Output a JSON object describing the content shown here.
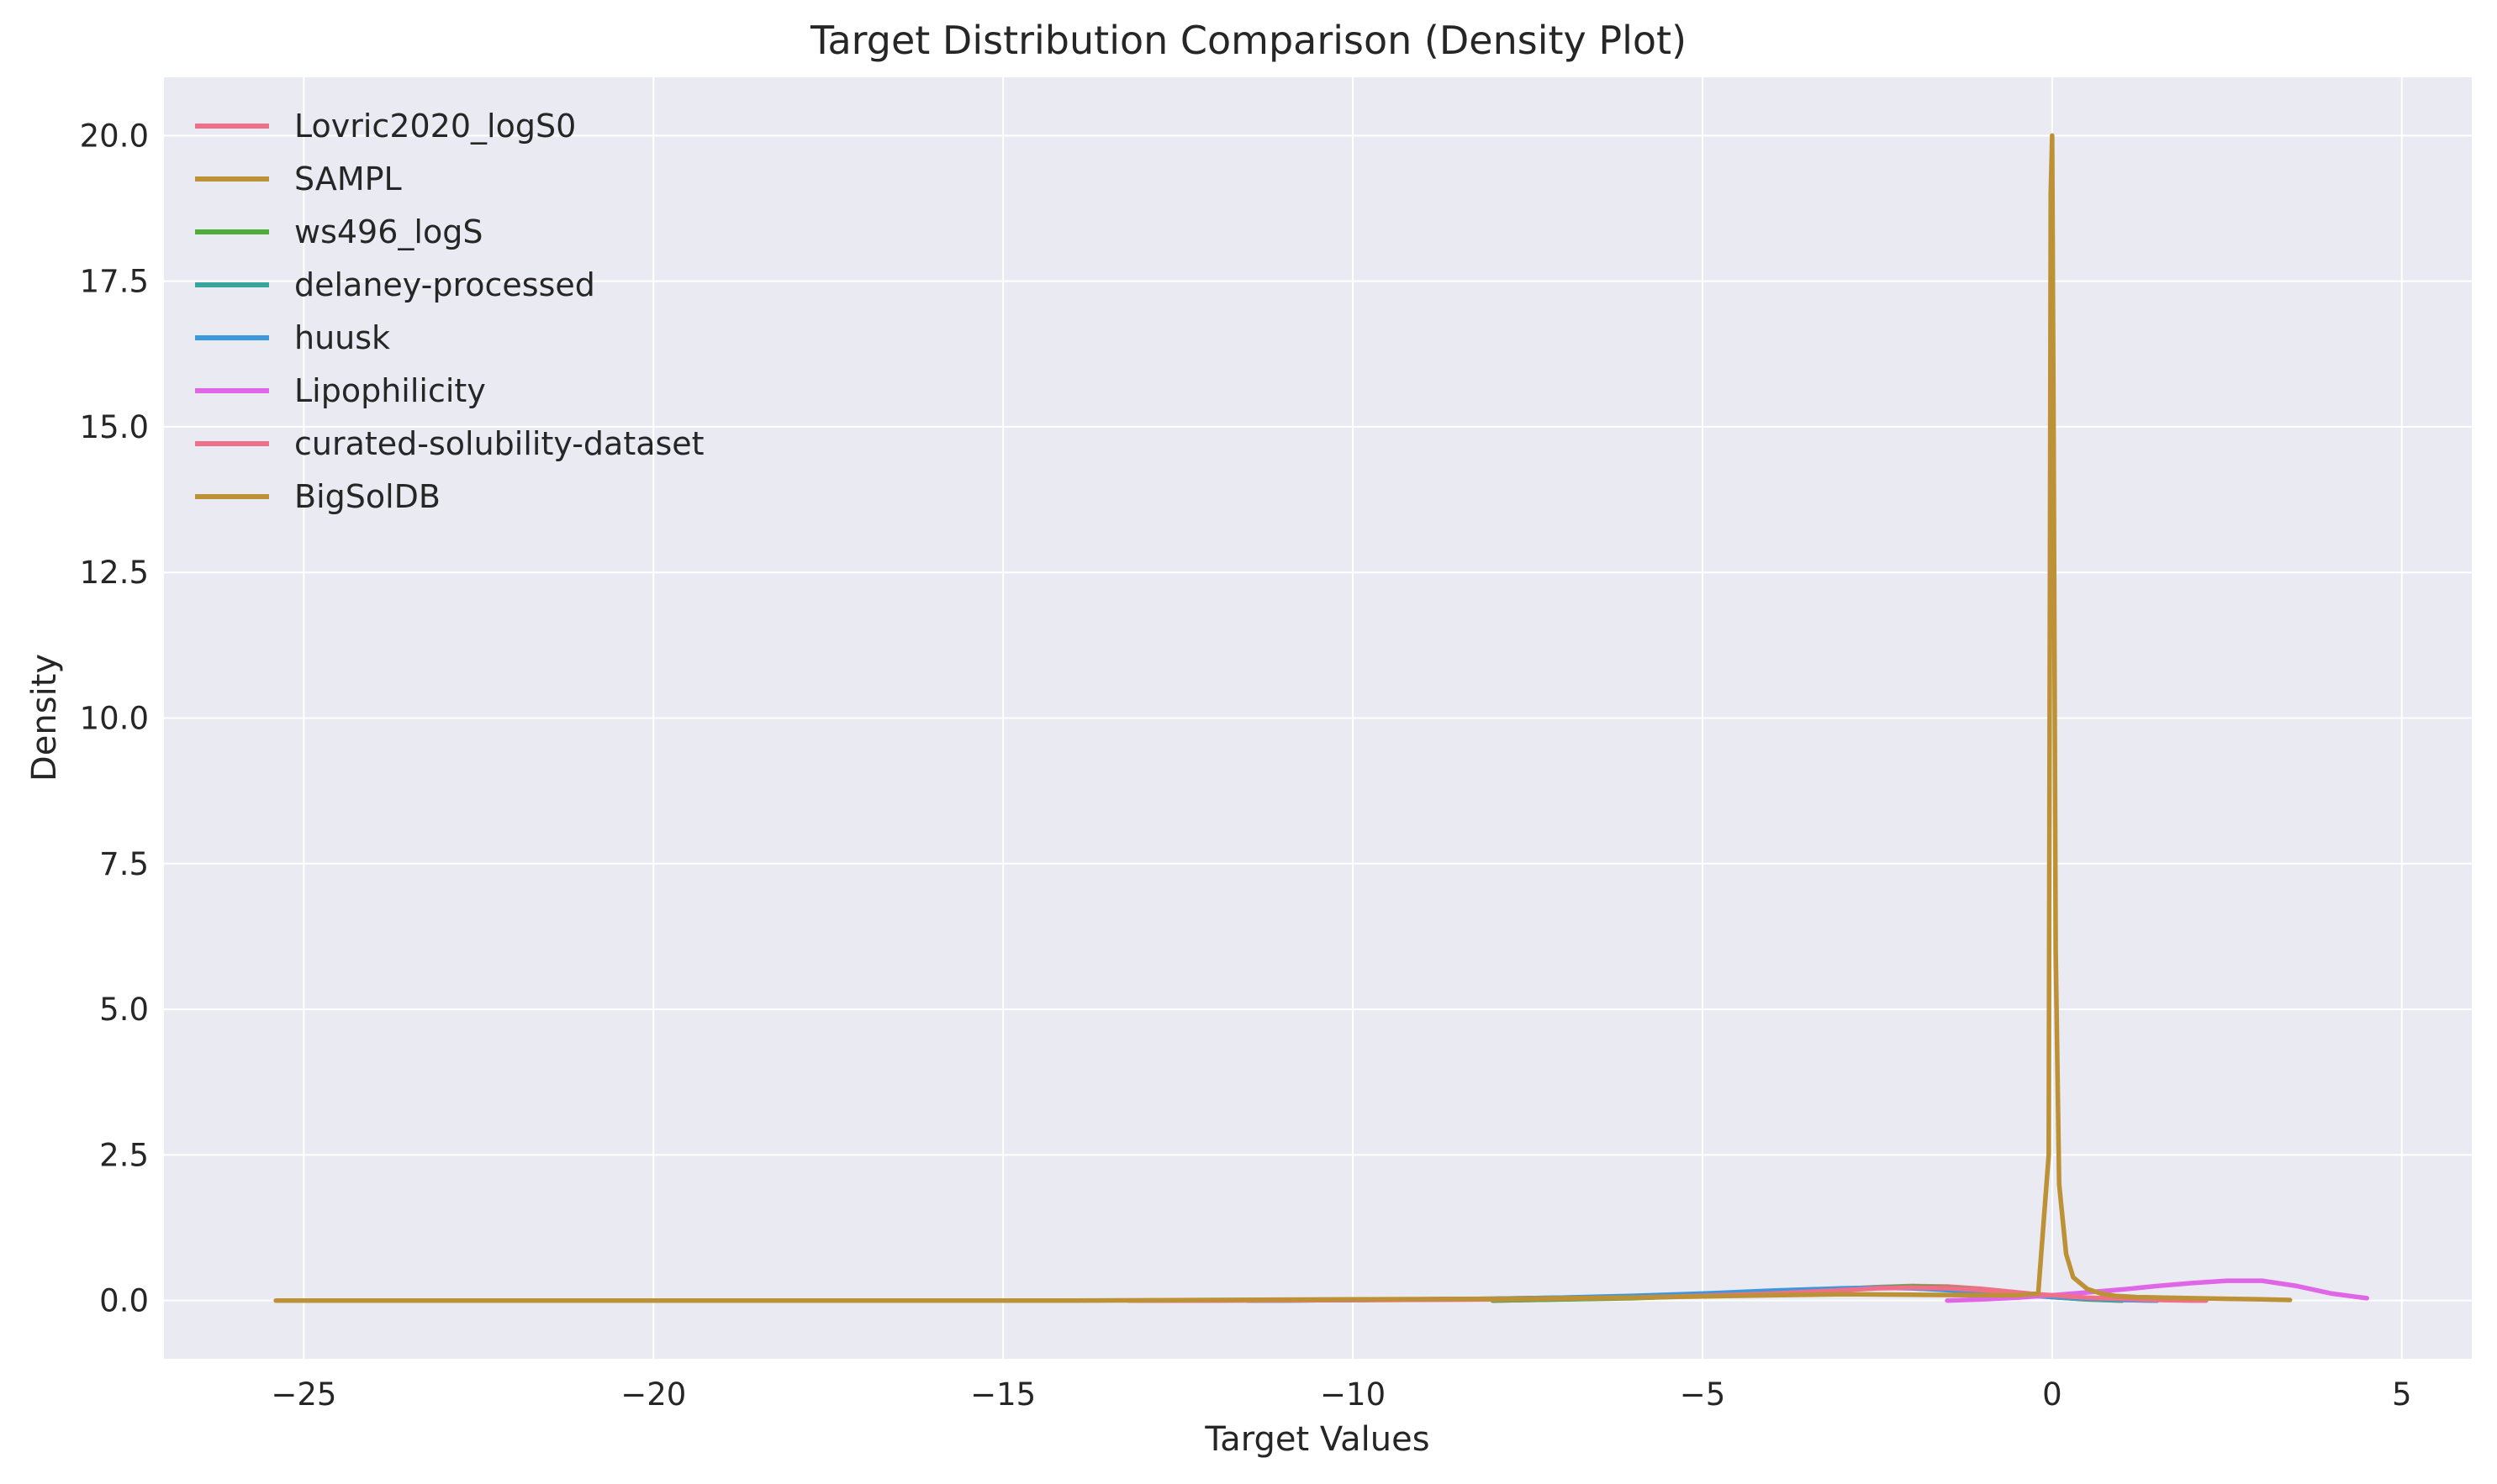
{
  "chart_data": {
    "type": "line",
    "title": "Target Distribution Comparison (Density Plot)",
    "xlabel": "Target Values",
    "ylabel": "Density",
    "xlim": [
      -27,
      6
    ],
    "ylim": [
      -1,
      21
    ],
    "xticks": [
      -25,
      -20,
      -15,
      -10,
      -5,
      0,
      5
    ],
    "xtick_labels": [
      "−25",
      "−20",
      "−15",
      "−10",
      "−5",
      "0",
      "5"
    ],
    "yticks": [
      0,
      2.5,
      5,
      7.5,
      10,
      12.5,
      15,
      17.5,
      20
    ],
    "ytick_labels": [
      "0.0",
      "2.5",
      "5.0",
      "7.5",
      "10.0",
      "12.5",
      "15.0",
      "17.5",
      "20.0"
    ],
    "grid": true,
    "legend_position": "top-left",
    "background": "#eaeaf2",
    "series": [
      {
        "name": "Lovric2020_logS0",
        "color": "#f07089",
        "x": [
          -11.5,
          -10,
          -8,
          -6,
          -5,
          -4,
          -3,
          -2.5,
          -2,
          -1.5,
          -1,
          -0.5,
          0,
          0.5,
          1,
          1.5
        ],
        "y": [
          0.0,
          0.01,
          0.02,
          0.05,
          0.08,
          0.13,
          0.19,
          0.23,
          0.25,
          0.24,
          0.2,
          0.14,
          0.08,
          0.04,
          0.01,
          0.0
        ]
      },
      {
        "name": "SAMPL",
        "color": "#bd9237",
        "x": [
          -8,
          -7,
          -6,
          -5,
          -4,
          -3,
          -2.5,
          -2,
          -1.5,
          -1,
          -0.5,
          0,
          0.5,
          1
        ],
        "y": [
          0.0,
          0.02,
          0.05,
          0.09,
          0.14,
          0.2,
          0.23,
          0.24,
          0.22,
          0.18,
          0.12,
          0.06,
          0.02,
          0.0
        ]
      },
      {
        "name": "ws496_logS",
        "color": "#4fad3a",
        "x": [
          -8,
          -7,
          -6,
          -5,
          -4,
          -3,
          -2.5,
          -2,
          -1.5,
          -1,
          -0.5,
          0,
          0.5,
          1
        ],
        "y": [
          0.0,
          0.02,
          0.04,
          0.08,
          0.13,
          0.19,
          0.22,
          0.24,
          0.22,
          0.18,
          0.12,
          0.06,
          0.02,
          0.0
        ]
      },
      {
        "name": "delaney-processed",
        "color": "#36a59b",
        "x": [
          -11.5,
          -10,
          -9,
          -8,
          -7,
          -6,
          -5,
          -4,
          -3,
          -2.5,
          -2,
          -1.5,
          -1,
          -0.5,
          0,
          0.5,
          1,
          1.5
        ],
        "y": [
          0.0,
          0.01,
          0.02,
          0.03,
          0.05,
          0.07,
          0.11,
          0.16,
          0.2,
          0.22,
          0.22,
          0.2,
          0.16,
          0.11,
          0.07,
          0.04,
          0.02,
          0.0
        ]
      },
      {
        "name": "huusk",
        "color": "#3b98dc",
        "x": [
          -11.5,
          -10,
          -9,
          -8,
          -7,
          -6,
          -5,
          -4,
          -3,
          -2.5,
          -2,
          -1.5,
          -1,
          -0.5,
          0,
          0.5,
          1,
          1.5
        ],
        "y": [
          0.0,
          0.01,
          0.02,
          0.03,
          0.05,
          0.08,
          0.12,
          0.17,
          0.21,
          0.22,
          0.21,
          0.18,
          0.14,
          0.1,
          0.06,
          0.03,
          0.01,
          0.0
        ]
      },
      {
        "name": "Lipophilicity",
        "color": "#e066e8",
        "x": [
          -1.5,
          -1,
          -0.5,
          0,
          0.5,
          1,
          1.5,
          2,
          2.5,
          3,
          3.5,
          4,
          4.5
        ],
        "y": [
          0.0,
          0.02,
          0.05,
          0.09,
          0.14,
          0.19,
          0.25,
          0.3,
          0.34,
          0.34,
          0.25,
          0.12,
          0.04
        ]
      },
      {
        "name": "curated-solubility-dataset",
        "color": "#f07089",
        "x": [
          -13.2,
          -12,
          -10,
          -8,
          -6,
          -5,
          -4,
          -3,
          -2.5,
          -2,
          -1.5,
          -1,
          -0.5,
          0,
          0.5,
          1,
          1.5,
          2,
          2.2
        ],
        "y": [
          0.0,
          0.0,
          0.01,
          0.02,
          0.05,
          0.08,
          0.12,
          0.18,
          0.21,
          0.22,
          0.21,
          0.18,
          0.13,
          0.09,
          0.05,
          0.03,
          0.01,
          0.0,
          0.0
        ]
      },
      {
        "name": "BigSolDB",
        "color": "#bd9237",
        "x": [
          -25.4,
          -24,
          -22,
          -20,
          -18,
          -16,
          -14,
          -12,
          -10,
          -8,
          -6,
          -5,
          -4,
          -3,
          -2,
          -1,
          -0.5,
          -0.2,
          -0.05,
          -0.02,
          0.0,
          0.02,
          0.05,
          0.1,
          0.2,
          0.3,
          0.5,
          0.7,
          0.9,
          1.2,
          1.6,
          2.0,
          2.5,
          3.0,
          3.4
        ],
        "y": [
          0.0,
          0.0,
          0.0,
          0.0,
          0.0,
          0.0,
          0.0,
          0.01,
          0.02,
          0.03,
          0.05,
          0.07,
          0.09,
          0.11,
          0.1,
          0.09,
          0.09,
          0.12,
          2.5,
          19.0,
          20.0,
          15.0,
          6.0,
          2.0,
          0.8,
          0.4,
          0.2,
          0.12,
          0.08,
          0.06,
          0.05,
          0.04,
          0.03,
          0.02,
          0.01
        ]
      }
    ]
  }
}
